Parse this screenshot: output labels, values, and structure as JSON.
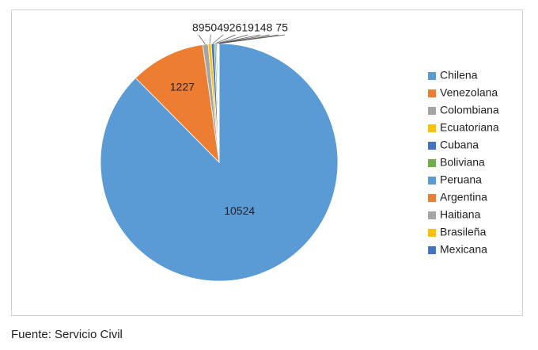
{
  "chart_data": {
    "type": "pie",
    "categories": [
      "Chilena",
      "Venezolana",
      "Colombiana",
      "Ecuatoriana",
      "Cubana",
      "Boliviana",
      "Peruana",
      "Argentina",
      "Haitiana",
      "Brasileña",
      "Mexicana"
    ],
    "values": [
      10524,
      1227,
      89,
      50,
      49,
      26,
      19,
      14,
      8,
      7,
      5
    ],
    "colors": [
      "#5b9bd5",
      "#ed7d31",
      "#a5a5a5",
      "#ffc000",
      "#4472c4",
      "#70ad47",
      "#5b9bd5",
      "#ed7d31",
      "#a5a5a5",
      "#ffc000",
      "#4472c4"
    ],
    "legend": "right"
  },
  "source": "Fuente: Servicio Civil"
}
